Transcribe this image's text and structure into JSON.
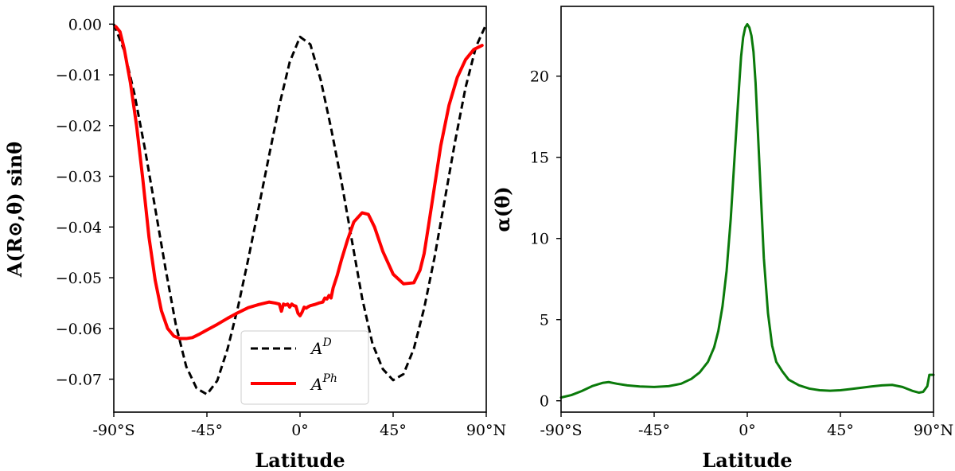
{
  "chart_data": [
    {
      "type": "line",
      "xlabel": "Latitude",
      "ylabel": "A(R⊙,θ) sinθ",
      "xlim": [
        -90,
        90
      ],
      "ylim": [
        -0.0765,
        0.0035
      ],
      "x_ticks": [
        {
          "value": -90,
          "label": "-90°S"
        },
        {
          "value": -45,
          "label": "-45°"
        },
        {
          "value": 0,
          "label": "0°"
        },
        {
          "value": 45,
          "label": "45°"
        },
        {
          "value": 90,
          "label": "90°N"
        }
      ],
      "y_ticks": [
        {
          "value": 0.0,
          "label": "0.00"
        },
        {
          "value": -0.01,
          "label": "−0.01"
        },
        {
          "value": -0.02,
          "label": "−0.02"
        },
        {
          "value": -0.03,
          "label": "−0.03"
        },
        {
          "value": -0.04,
          "label": "−0.04"
        },
        {
          "value": -0.05,
          "label": "−0.05"
        },
        {
          "value": -0.06,
          "label": "−0.06"
        },
        {
          "value": -0.07,
          "label": "−0.07"
        }
      ],
      "legend": {
        "position": "lower-center"
      },
      "series": [
        {
          "name": "A^D",
          "label_base": "A",
          "label_sup": "D",
          "color": "#000000",
          "style": "dashed",
          "x": [
            -90,
            -85,
            -80,
            -75,
            -70,
            -65,
            -60,
            -55,
            -50,
            -45,
            -40,
            -35,
            -30,
            -25,
            -20,
            -15,
            -10,
            -5,
            0,
            5,
            10,
            15,
            20,
            25,
            30,
            35,
            40,
            45,
            50,
            55,
            60,
            65,
            70,
            75,
            80,
            85,
            90
          ],
          "y": [
            0.0,
            -0.0052,
            -0.0138,
            -0.0245,
            -0.0363,
            -0.0482,
            -0.0593,
            -0.0675,
            -0.0718,
            -0.073,
            -0.0703,
            -0.064,
            -0.0558,
            -0.0463,
            -0.0362,
            -0.026,
            -0.016,
            -0.0075,
            -0.0025,
            -0.004,
            -0.011,
            -0.0205,
            -0.031,
            -0.0425,
            -0.054,
            -0.063,
            -0.068,
            -0.0702,
            -0.069,
            -0.064,
            -0.056,
            -0.046,
            -0.0345,
            -0.023,
            -0.0125,
            -0.0045,
            0.0
          ]
        },
        {
          "name": "A^Ph",
          "label_base": "A",
          "label_sup": "Ph",
          "color": "#ff0000",
          "style": "solid",
          "x": [
            -89,
            -87,
            -85,
            -82,
            -79,
            -76,
            -73,
            -70,
            -67,
            -64,
            -61,
            -58,
            -55,
            -52,
            -49,
            -45,
            -40,
            -35,
            -30,
            -25,
            -20,
            -15,
            -12,
            -10,
            -9,
            -8,
            -7,
            -6,
            -5,
            -4,
            -3,
            -2,
            -1,
            0,
            1,
            2,
            3,
            4,
            5,
            7,
            9,
            11,
            12,
            13,
            14,
            15,
            16,
            18,
            20,
            23,
            26,
            30,
            33,
            36,
            40,
            45,
            50,
            55,
            58,
            60,
            62,
            65,
            68,
            72,
            76,
            80,
            84,
            88
          ],
          "y": [
            -0.0005,
            -0.0015,
            -0.0048,
            -0.0115,
            -0.02,
            -0.0305,
            -0.042,
            -0.0505,
            -0.0565,
            -0.06,
            -0.0615,
            -0.062,
            -0.062,
            -0.0618,
            -0.0612,
            -0.0603,
            -0.0592,
            -0.058,
            -0.0569,
            -0.0559,
            -0.0553,
            -0.0548,
            -0.055,
            -0.0552,
            -0.0566,
            -0.0552,
            -0.0554,
            -0.0552,
            -0.0558,
            -0.0552,
            -0.0555,
            -0.0556,
            -0.057,
            -0.0575,
            -0.0568,
            -0.0558,
            -0.056,
            -0.0557,
            -0.0555,
            -0.0553,
            -0.055,
            -0.0548,
            -0.054,
            -0.0542,
            -0.0535,
            -0.054,
            -0.052,
            -0.0495,
            -0.0465,
            -0.0425,
            -0.039,
            -0.0372,
            -0.0375,
            -0.04,
            -0.0448,
            -0.0493,
            -0.0512,
            -0.051,
            -0.0485,
            -0.0452,
            -0.04,
            -0.032,
            -0.024,
            -0.016,
            -0.0105,
            -0.007,
            -0.005,
            -0.0042
          ]
        }
      ]
    },
    {
      "type": "line",
      "xlabel": "Latitude",
      "ylabel": "α(θ)",
      "xlim": [
        -90,
        90
      ],
      "ylim": [
        -0.7,
        24.3
      ],
      "x_ticks": [
        {
          "value": -90,
          "label": "-90°S"
        },
        {
          "value": -45,
          "label": "-45°"
        },
        {
          "value": 0,
          "label": "0°"
        },
        {
          "value": 45,
          "label": "45°"
        },
        {
          "value": 90,
          "label": "90°N"
        }
      ],
      "y_ticks": [
        {
          "value": 0,
          "label": "0"
        },
        {
          "value": 5,
          "label": "5"
        },
        {
          "value": 10,
          "label": "10"
        },
        {
          "value": 15,
          "label": "15"
        },
        {
          "value": 20,
          "label": "20"
        }
      ],
      "series": [
        {
          "name": "alpha",
          "color": "#0a7a0a",
          "style": "solid",
          "x": [
            -90,
            -85,
            -80,
            -75,
            -70,
            -67,
            -63,
            -58,
            -52,
            -45,
            -38,
            -32,
            -27,
            -23,
            -19,
            -16,
            -14,
            -12,
            -10,
            -8,
            -6,
            -4,
            -3,
            -2,
            -1,
            0,
            1,
            2,
            3,
            4,
            6,
            8,
            10,
            12,
            14,
            17,
            20,
            25,
            30,
            35,
            40,
            45,
            50,
            55,
            60,
            65,
            70,
            75,
            80,
            83,
            85,
            87,
            88,
            90
          ],
          "y": [
            0.2,
            0.35,
            0.6,
            0.9,
            1.1,
            1.15,
            1.05,
            0.95,
            0.88,
            0.85,
            0.9,
            1.05,
            1.35,
            1.75,
            2.4,
            3.3,
            4.3,
            5.8,
            8.0,
            11.2,
            15.3,
            19.3,
            21.2,
            22.4,
            23.0,
            23.2,
            23.0,
            22.5,
            21.5,
            19.6,
            14.2,
            8.8,
            5.4,
            3.4,
            2.4,
            1.8,
            1.3,
            0.95,
            0.75,
            0.65,
            0.62,
            0.65,
            0.72,
            0.8,
            0.88,
            0.95,
            0.98,
            0.85,
            0.6,
            0.5,
            0.55,
            0.9,
            1.6,
            1.6
          ]
        }
      ]
    }
  ]
}
